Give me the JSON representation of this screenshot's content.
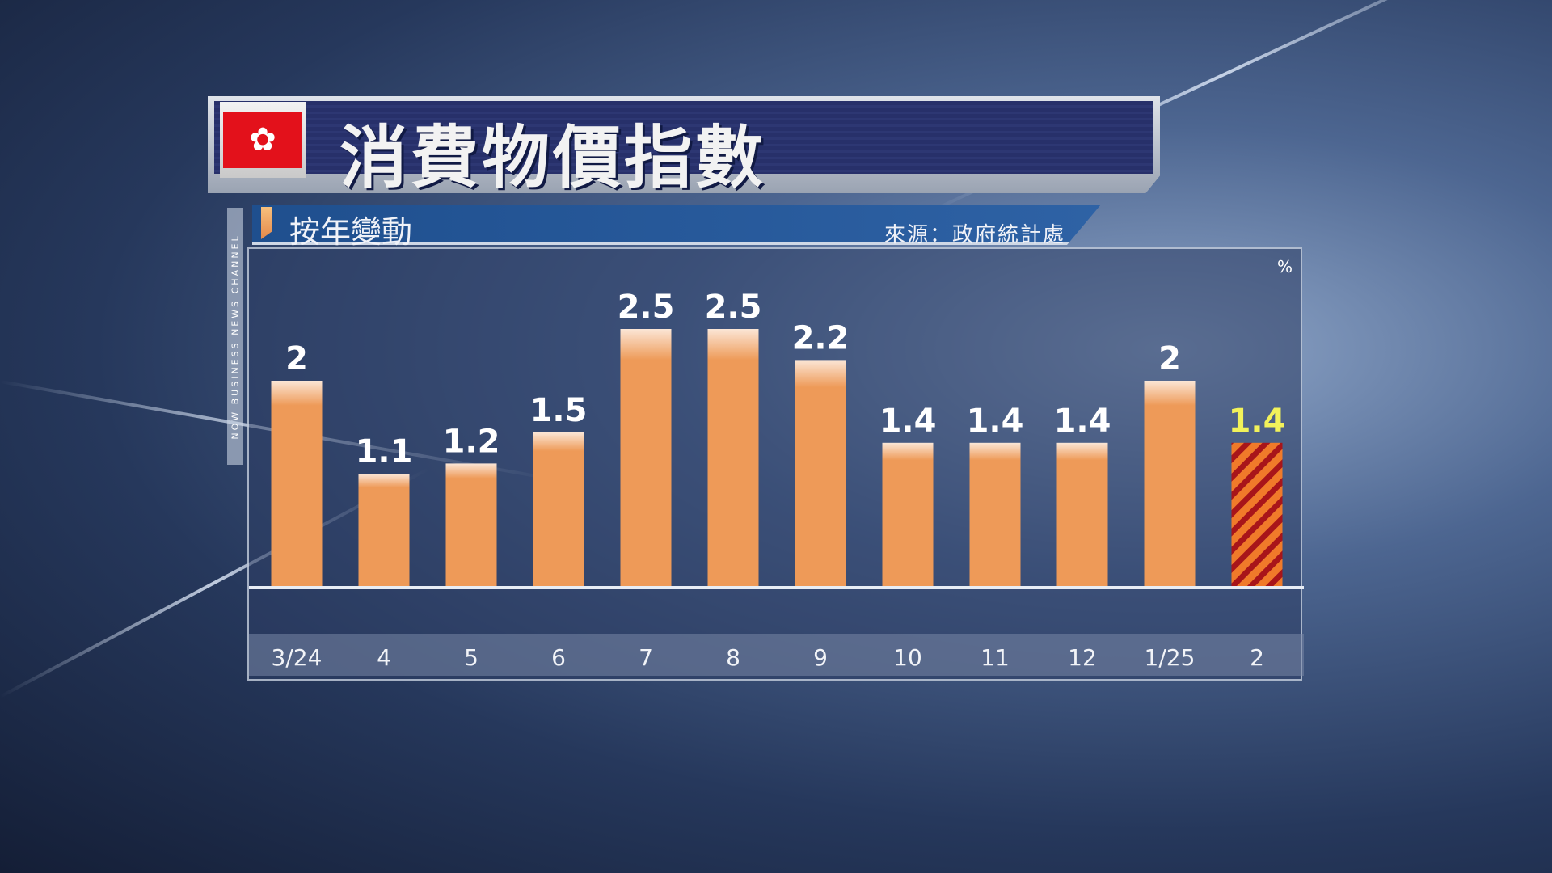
{
  "header": {
    "title": "消費物價指數",
    "flag": "hong-kong-flag"
  },
  "subheader": {
    "label": "按年變動",
    "source": "來源：政府統計處"
  },
  "watermark": "NOW BUSINESS NEWS CHANNEL",
  "chart_data": {
    "type": "bar",
    "title": "消費物價指數",
    "subtitle": "按年變動",
    "ylabel": "%",
    "categories": [
      "3/24",
      "4",
      "5",
      "6",
      "7",
      "8",
      "9",
      "10",
      "11",
      "12",
      "1/25",
      "2"
    ],
    "values": [
      2,
      1.1,
      1.2,
      1.5,
      2.5,
      2.5,
      2.2,
      1.4,
      1.4,
      1.4,
      2,
      1.4
    ],
    "data_labels": [
      "2",
      "1.1",
      "1.2",
      "1.5",
      "2.5",
      "2.5",
      "2.2",
      "1.4",
      "1.4",
      "1.4",
      "2",
      "1.4"
    ],
    "highlight_index": 11,
    "colors": {
      "bar": "#ee9a58",
      "highlight_stripe_a": "#f07a2a",
      "highlight_stripe_b": "#a8151a",
      "highlight_label": "#f2f25a",
      "label": "#ffffff"
    },
    "grid": false
  }
}
